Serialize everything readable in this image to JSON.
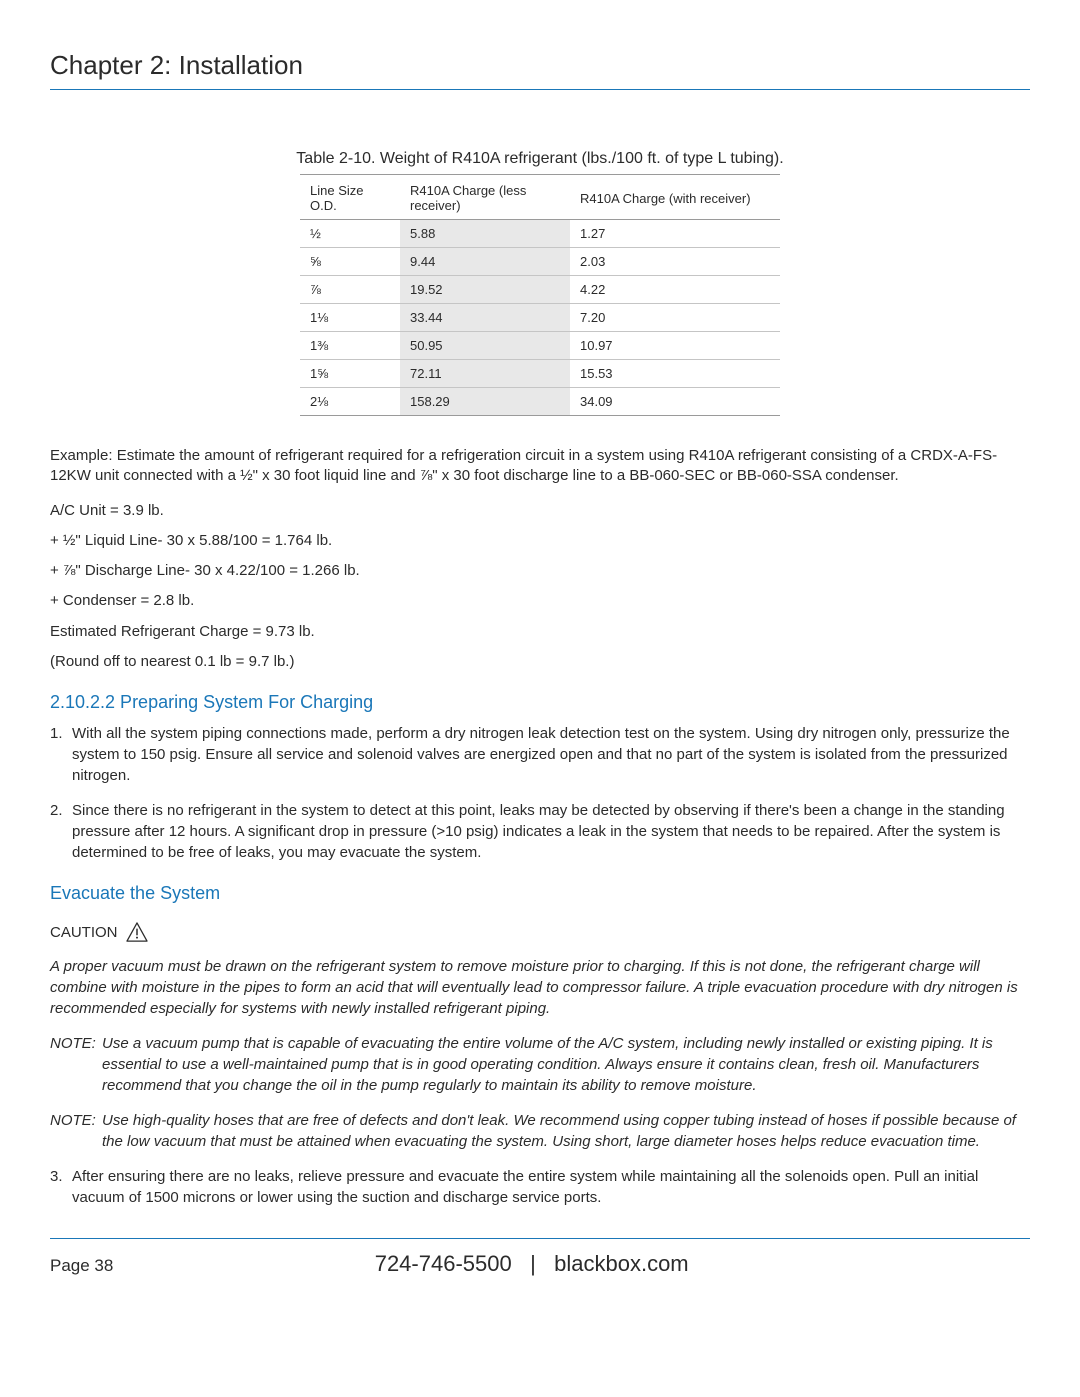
{
  "chapter_title": "Chapter 2: Installation",
  "table": {
    "caption": "Table 2-10. Weight of R410A refrigerant (lbs./100 ft. of type L tubing).",
    "columns": [
      "Line Size O.D.",
      "R410A Charge (less receiver)",
      "R410A Charge (with receiver)"
    ],
    "rows": [
      [
        "½",
        "5.88",
        "1.27"
      ],
      [
        "⅝",
        "9.44",
        "2.03"
      ],
      [
        "⅞",
        "19.52",
        "4.22"
      ],
      [
        "1⅛",
        "33.44",
        "7.20"
      ],
      [
        "1⅜",
        "50.95",
        "10.97"
      ],
      [
        "1⅝",
        "72.11",
        "15.53"
      ],
      [
        "2⅛",
        "158.29",
        "34.09"
      ]
    ]
  },
  "example_intro": "Example: Estimate the amount of refrigerant required for a refrigeration circuit in a system using R410A refrigerant consisting of a CRDX-A-FS-12KW unit connected with a ½\" x 30 foot liquid line and ⅞\" x 30 foot discharge line to a BB-060-SEC or BB-060-SSA condenser.",
  "calc_lines": [
    "A/C Unit = 3.9 lb.",
    "+ ½\" Liquid Line- 30 x 5.88/100 = 1.764 lb.",
    "+ ⅞\" Discharge Line- 30 x 4.22/100 = 1.266 lb.",
    "+ Condenser = 2.8 lb.",
    "Estimated Refrigerant Charge = 9.73 lb.",
    "(Round off to nearest 0.1 lb = 9.7 lb.)"
  ],
  "section1": {
    "heading": "2.10.2.2 Preparing System For Charging",
    "steps": [
      "With all the system piping connections made, perform a dry nitrogen leak detection test on the system. Using dry nitrogen only, pressurize the system to 150 psig. Ensure all service and solenoid valves are energized open and that no part of the system is isolated from the pressurized nitrogen.",
      "Since there is no refrigerant in the system to detect at this point, leaks may be detected by observing if there's been a change in the standing pressure after 12 hours. A significant drop in pressure (>10 psig) indicates a leak in the system that needs to be repaired. After the system is determined to be free of leaks, you may evacuate the system."
    ]
  },
  "section2": {
    "heading": "Evacuate the System",
    "caution_label": "CAUTION",
    "caution_text": "A proper vacuum must be drawn on the refrigerant system to remove moisture prior to charging. If this is not done, the refrigerant charge will combine with moisture in the pipes to form an acid that will eventually lead to compressor failure. A triple evacuation procedure with dry nitrogen is recommended especially for systems with newly installed refrigerant piping.",
    "notes": [
      "Use a vacuum pump that is capable of evacuating the entire volume of the A/C system, including newly installed or existing piping. It is essential to use a well-maintained pump that is in good operating condition. Always ensure it contains clean, fresh oil. Manufacturers recommend that you change the oil in the pump regularly to maintain its ability to remove moisture.",
      "Use high-quality hoses that are free of defects and don't leak. We recommend using copper tubing instead of hoses if possible because of the low vacuum that must be attained when evacuating the system. Using short, large diameter hoses helps reduce evacuation time."
    ],
    "note_label": "NOTE:",
    "step3": "After ensuring there are no leaks, relieve pressure and evacuate the entire system while maintaining all the solenoids open. Pull an initial vacuum of 1500 microns or lower using the suction and discharge service ports."
  },
  "footer": {
    "page_label": "Page 38",
    "phone": "724-746-5500",
    "sep": "|",
    "site": "blackbox.com"
  }
}
